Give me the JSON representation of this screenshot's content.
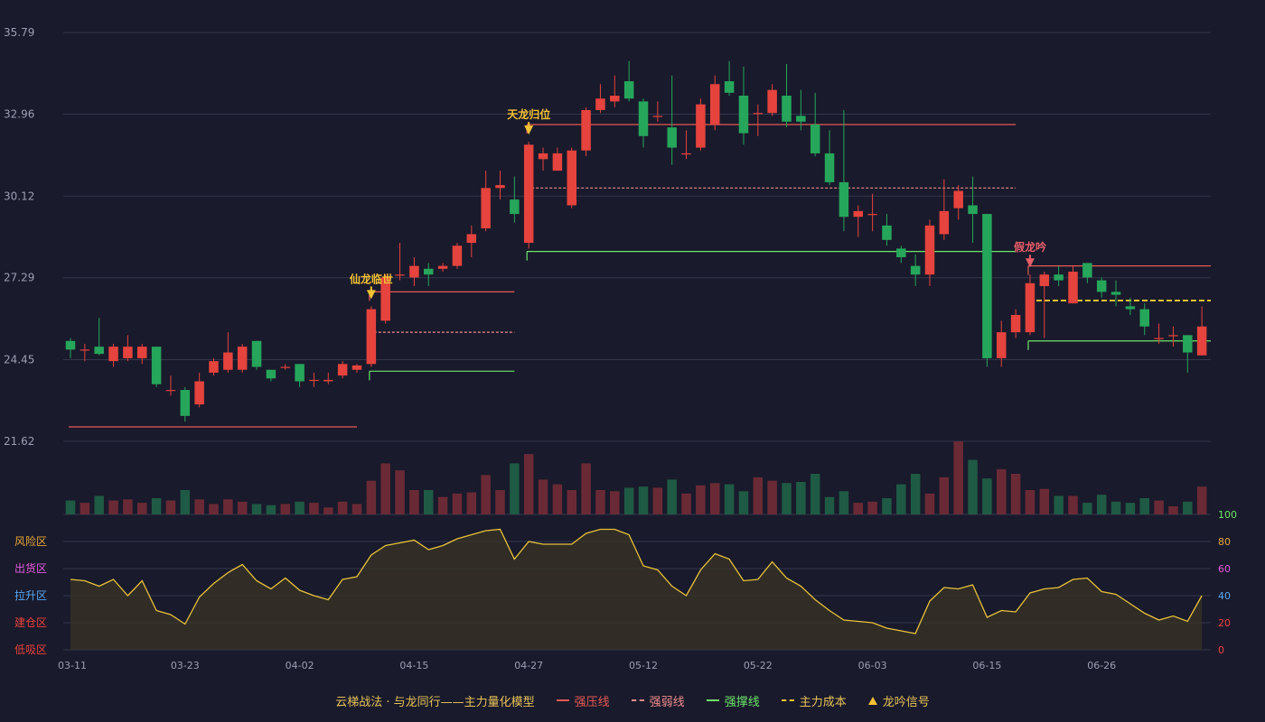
{
  "colors": {
    "up": "#e5433d",
    "down": "#26a65b",
    "signal": "#f2c235",
    "grid": "#34364d",
    "axis": "#9b9fb3",
    "osc": "#e8c23a",
    "resist": "#e45b54",
    "weak": "#f08d8d",
    "support": "#6ee66b",
    "cost": "#f2c235",
    "bull_signal": "#e85d6a"
  },
  "legend": {
    "title": "云梯战法 · 与龙同行——主力量化模型",
    "resist_label": "强压线",
    "weak_label": "强弱线",
    "support_label": "强撑线",
    "cost_label": "主力成本",
    "signal_label": "龙吟信号"
  },
  "chart_data": {
    "type": "candlestick",
    "price_ylim": [
      21.62,
      35.79
    ],
    "price_ticks": [
      "35.79",
      "32.96",
      "30.12",
      "27.29",
      "24.45",
      "21.62"
    ],
    "date_ticks": [
      {
        "i": 0,
        "label": "03-11"
      },
      {
        "i": 8,
        "label": "03-23"
      },
      {
        "i": 16,
        "label": "04-02"
      },
      {
        "i": 24,
        "label": "04-15"
      },
      {
        "i": 32,
        "label": "04-27"
      },
      {
        "i": 40,
        "label": "05-12"
      },
      {
        "i": 48,
        "label": "05-22"
      },
      {
        "i": 56,
        "label": "06-03"
      },
      {
        "i": 64,
        "label": "06-15"
      },
      {
        "i": 72,
        "label": "06-26"
      }
    ],
    "candles": [
      [
        25.1,
        24.8,
        25.2,
        24.5
      ],
      [
        24.8,
        24.8,
        25.0,
        24.4
      ],
      [
        24.9,
        24.65,
        25.9,
        24.6
      ],
      [
        24.4,
        24.9,
        25.0,
        24.2
      ],
      [
        24.5,
        24.9,
        25.3,
        24.4
      ],
      [
        24.5,
        24.9,
        25.0,
        24.3
      ],
      [
        24.9,
        23.6,
        24.9,
        23.5
      ],
      [
        23.4,
        23.4,
        23.9,
        23.2
      ],
      [
        23.4,
        22.5,
        23.5,
        22.3
      ],
      [
        22.9,
        23.7,
        24.0,
        22.8
      ],
      [
        24.0,
        24.4,
        24.5,
        23.9
      ],
      [
        24.1,
        24.7,
        25.4,
        24.0
      ],
      [
        24.1,
        24.9,
        25.0,
        24.0
      ],
      [
        25.1,
        24.2,
        25.1,
        24.1
      ],
      [
        24.1,
        23.8,
        24.0,
        23.7
      ],
      [
        24.2,
        24.2,
        24.3,
        24.1
      ],
      [
        24.3,
        23.7,
        24.3,
        23.5
      ],
      [
        23.75,
        23.75,
        24.0,
        23.5
      ],
      [
        23.7,
        23.75,
        24.0,
        23.6
      ],
      [
        23.9,
        24.3,
        24.4,
        23.8
      ],
      [
        24.1,
        24.25,
        24.3,
        24.0
      ],
      [
        24.3,
        26.2,
        26.3,
        24.2
      ],
      [
        25.8,
        27.3,
        27.4,
        25.7
      ],
      [
        27.4,
        27.4,
        28.5,
        27.2
      ],
      [
        27.3,
        27.7,
        28.0,
        27.0
      ],
      [
        27.6,
        27.4,
        27.8,
        27.0
      ],
      [
        27.6,
        27.7,
        27.8,
        27.5
      ],
      [
        27.7,
        28.4,
        28.5,
        27.6
      ],
      [
        28.5,
        28.8,
        29.1,
        28.0
      ],
      [
        29.0,
        30.4,
        31.0,
        28.9
      ],
      [
        30.4,
        30.5,
        31.0,
        30.0
      ],
      [
        30.0,
        29.5,
        30.8,
        29.2
      ],
      [
        28.5,
        31.9,
        32.0,
        28.3
      ],
      [
        31.4,
        31.6,
        31.8,
        31.0
      ],
      [
        31.0,
        31.6,
        31.8,
        31.0
      ],
      [
        29.8,
        31.7,
        31.8,
        29.7
      ],
      [
        31.7,
        33.1,
        33.2,
        31.5
      ],
      [
        33.1,
        33.5,
        34.0,
        33.0
      ],
      [
        33.4,
        33.6,
        34.3,
        33.2
      ],
      [
        34.1,
        33.5,
        34.8,
        33.4
      ],
      [
        33.4,
        32.2,
        33.5,
        31.8
      ],
      [
        32.9,
        32.9,
        33.4,
        32.7
      ],
      [
        32.5,
        31.8,
        34.3,
        31.2
      ],
      [
        31.6,
        31.6,
        32.4,
        31.4
      ],
      [
        31.8,
        33.3,
        33.5,
        31.7
      ],
      [
        32.6,
        34.0,
        34.3,
        32.4
      ],
      [
        34.1,
        33.7,
        34.8,
        33.6
      ],
      [
        33.6,
        32.3,
        34.6,
        31.9
      ],
      [
        33.0,
        33.0,
        33.3,
        32.2
      ],
      [
        33.0,
        33.8,
        34.0,
        32.9
      ],
      [
        33.6,
        32.7,
        34.7,
        32.5
      ],
      [
        32.9,
        32.7,
        33.8,
        32.4
      ],
      [
        32.6,
        31.6,
        33.7,
        31.5
      ],
      [
        31.6,
        30.6,
        32.4,
        30.5
      ],
      [
        30.6,
        29.4,
        33.1,
        28.9
      ],
      [
        29.4,
        29.6,
        29.8,
        28.7
      ],
      [
        29.5,
        29.5,
        30.2,
        28.9
      ],
      [
        29.1,
        28.6,
        29.5,
        28.4
      ],
      [
        28.3,
        28.0,
        28.4,
        27.8
      ],
      [
        27.7,
        27.4,
        28.1,
        27.0
      ],
      [
        27.4,
        29.1,
        29.3,
        27.0
      ],
      [
        28.8,
        29.6,
        30.7,
        28.6
      ],
      [
        29.7,
        30.3,
        30.5,
        29.3
      ],
      [
        29.8,
        29.5,
        30.8,
        28.5
      ],
      [
        29.5,
        24.5,
        29.5,
        24.2
      ],
      [
        24.5,
        25.4,
        25.8,
        24.2
      ],
      [
        25.4,
        26.0,
        26.2,
        25.2
      ],
      [
        25.4,
        27.1,
        27.4,
        25.3
      ],
      [
        27.0,
        27.4,
        27.5,
        25.2
      ],
      [
        27.4,
        27.2,
        27.7,
        27.0
      ],
      [
        26.4,
        27.5,
        27.7,
        26.4
      ],
      [
        27.8,
        27.3,
        27.8,
        27.1
      ],
      [
        27.2,
        26.8,
        27.3,
        26.6
      ],
      [
        26.8,
        26.7,
        27.2,
        26.3
      ],
      [
        26.3,
        26.2,
        26.6,
        26.0
      ],
      [
        26.2,
        25.6,
        26.4,
        25.3
      ],
      [
        25.2,
        25.2,
        25.7,
        25.0
      ],
      [
        25.3,
        25.3,
        25.6,
        24.9
      ],
      [
        25.3,
        24.7,
        25.3,
        24.0
      ],
      [
        24.6,
        25.6,
        26.3,
        24.6
      ]
    ],
    "volume": [
      12,
      10,
      16,
      12,
      13,
      10,
      14,
      12,
      21,
      13,
      9,
      13,
      11,
      9,
      8,
      9,
      11,
      10,
      6,
      11,
      9,
      29,
      44,
      38,
      21,
      21,
      15,
      18,
      19,
      34,
      21,
      44,
      52,
      30,
      26,
      21,
      44,
      21,
      20,
      23,
      24,
      23,
      30,
      18,
      25,
      27,
      26,
      20,
      32,
      29,
      27,
      28,
      35,
      15,
      20,
      10,
      11,
      14,
      26,
      35,
      18,
      32,
      63,
      47,
      31,
      39,
      35,
      21,
      22,
      16,
      16,
      10,
      17,
      11,
      10,
      14,
      12,
      7,
      11,
      24
    ],
    "oscillator": [
      52,
      51,
      47,
      52,
      40,
      51,
      29,
      26,
      19,
      39,
      49,
      57,
      63,
      51,
      45,
      53,
      44,
      40,
      37,
      52,
      54,
      70,
      77,
      79,
      81,
      74,
      77,
      82,
      85,
      88,
      89,
      67,
      80,
      78,
      78,
      78,
      86,
      89,
      89,
      85,
      62,
      59,
      47,
      40,
      59,
      71,
      67,
      51,
      52,
      65,
      53,
      47,
      37,
      29,
      22,
      21,
      20,
      16,
      14,
      12,
      36,
      46,
      45,
      48,
      24,
      29,
      28,
      42,
      45,
      46,
      52,
      53,
      43,
      41,
      34,
      27,
      22,
      25,
      21,
      40
    ],
    "osc_ylim": [
      0,
      100
    ],
    "osc_ticks": [
      {
        "v": 100,
        "c": "#6ee66b"
      },
      {
        "v": 80,
        "c": "#e8a63a"
      },
      {
        "v": 60,
        "c": "#e05be0"
      },
      {
        "v": 40,
        "c": "#5aa7f2"
      },
      {
        "v": 20,
        "c": "#e5433d"
      },
      {
        "v": 0,
        "c": "#e5433d"
      }
    ],
    "osc_zones": [
      {
        "label": "风险区",
        "v": 80,
        "c": "#e8a63a"
      },
      {
        "label": "出货区",
        "v": 60,
        "c": "#e05be0"
      },
      {
        "label": "拉升区",
        "v": 40,
        "c": "#5aa7f2"
      },
      {
        "label": "建仓区",
        "v": 20,
        "c": "#e5433d"
      },
      {
        "label": "低吸区",
        "v": 0,
        "c": "#e5433d"
      }
    ],
    "lines": [
      {
        "kind": "resist",
        "from": 0,
        "to": 20,
        "y": 22.12
      },
      {
        "kind": "resist",
        "from": 21,
        "to": 31,
        "y": 26.8
      },
      {
        "kind": "weak",
        "from": 21,
        "to": 31,
        "y": 25.4
      },
      {
        "kind": "support",
        "from": 21,
        "to": 31,
        "y": 24.05
      },
      {
        "kind": "resist",
        "from": 32,
        "to": 66,
        "y": 32.6
      },
      {
        "kind": "weak",
        "from": 32,
        "to": 66,
        "y": 30.4
      },
      {
        "kind": "support",
        "from": 32,
        "to": 66,
        "y": 28.2
      },
      {
        "kind": "resist",
        "from": 67,
        "to": 80,
        "y": 27.7
      },
      {
        "kind": "cost",
        "from": 67,
        "to": 80,
        "y": 26.5
      },
      {
        "kind": "support",
        "from": 67,
        "to": 80,
        "y": 25.1
      }
    ],
    "signals": [
      {
        "i": 21,
        "label": "仙龙临世",
        "type": "dragon"
      },
      {
        "i": 32,
        "label": "天龙归位",
        "type": "dragon"
      },
      {
        "i": 67,
        "label": "假龙吟",
        "type": "fake"
      }
    ]
  }
}
